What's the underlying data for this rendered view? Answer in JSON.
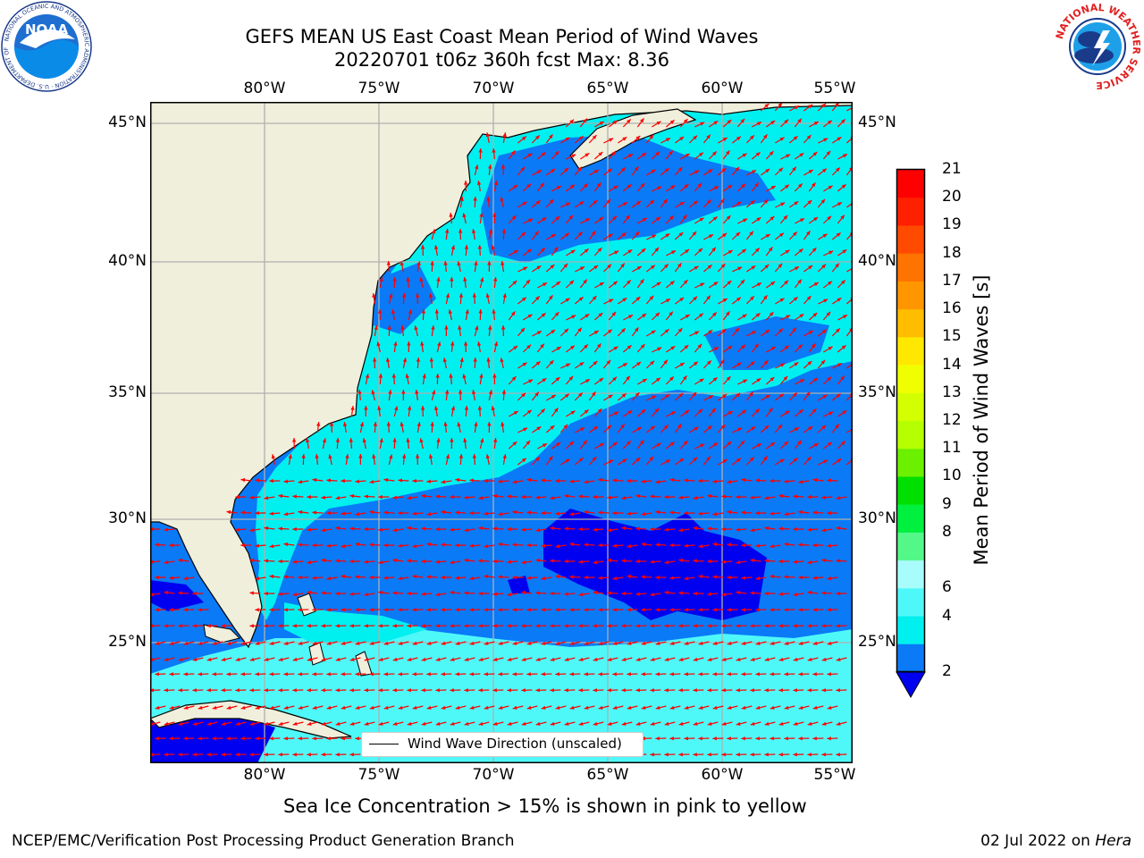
{
  "header": {
    "title": "GEFS MEAN US East Coast Mean Period of Wind Waves",
    "subtitle": "20220701 t06z 360h fcst   Max: 8.36"
  },
  "logos": {
    "left": "NOAA",
    "left_ring": "NATIONAL OCEANIC AND ATMOSPHERIC ADMINISTRATION · U.S. DEPARTMENT OF COMMERCE",
    "right_ring": "NATIONAL WEATHER SERVICE"
  },
  "map": {
    "lon_labels": [
      "80°W",
      "75°W",
      "70°W",
      "65°W",
      "60°W",
      "55°W"
    ],
    "lat_labels": [
      "45°N",
      "40°N",
      "35°N",
      "30°N",
      "25°N"
    ],
    "colors": {
      "land": "#efefdc",
      "band_2_4": "#0a7af7",
      "band_4_6": "#00f0f0",
      "band_6_8": "#4ff8f8",
      "band_below_2": "#0000f0",
      "arrow": "#ff0000",
      "grid": "#b0b0b0"
    },
    "legend_text": "Wind Wave Direction (unscaled)"
  },
  "colorbar": {
    "title": "Mean Period of Wind Waves [s]",
    "labels": [
      "21",
      "20",
      "19",
      "18",
      "17",
      "16",
      "15",
      "14",
      "13",
      "12",
      "11",
      "10",
      "9",
      "8",
      "6",
      "4",
      "2"
    ],
    "colors": [
      "#ff0000",
      "#ff2000",
      "#ff4a00",
      "#ff7300",
      "#ff9600",
      "#ffbd00",
      "#ffe800",
      "#f0ff00",
      "#d4ff00",
      "#b5ff00",
      "#6bf000",
      "#00e000",
      "#00f040",
      "#54f888",
      "#a8fcfc",
      "#4ff8f8",
      "#00f0f0",
      "#0a7af7"
    ],
    "extend_color": "#0000f0"
  },
  "notes": {
    "sea_ice": "Sea Ice Concentration > 15% is shown in pink to yellow"
  },
  "footer": {
    "left": "NCEP/EMC/Verification Post Processing Product Generation Branch",
    "date": "02 Jul 2022 on ",
    "machine": "Hera"
  }
}
